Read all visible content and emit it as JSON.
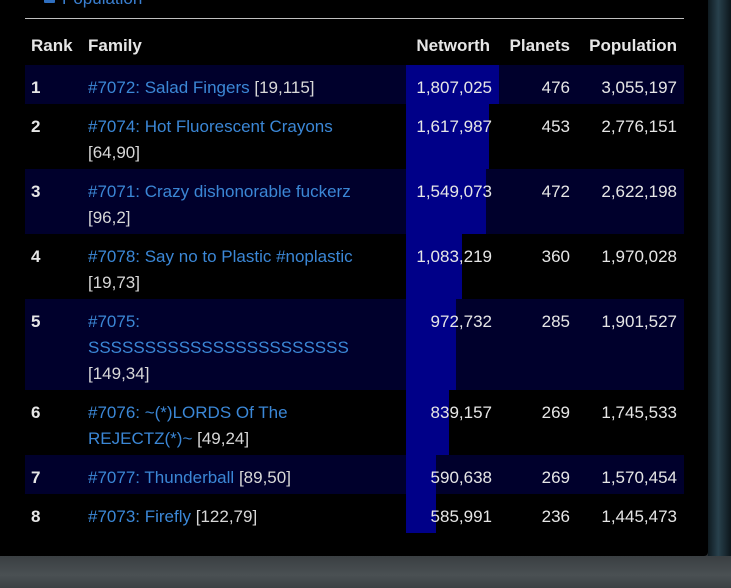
{
  "legend": {
    "label": "Population"
  },
  "table": {
    "headers": {
      "rank": "Rank",
      "family": "Family",
      "networth": "Networth",
      "planets": "Planets",
      "population": "Population"
    },
    "max_networth": 1807025,
    "rows": [
      {
        "rank": "1",
        "family": "#7072: Salad Fingers",
        "coords": "[19,115]",
        "networth": "1,807,025",
        "networth_value": 1807025,
        "planets": "476",
        "population": "3,055,197"
      },
      {
        "rank": "2",
        "family": "#7074: Hot Fluorescent Crayons",
        "coords": "[64,90]",
        "networth": "1,617,987",
        "networth_value": 1617987,
        "planets": "453",
        "population": "2,776,151"
      },
      {
        "rank": "3",
        "family": "#7071: Crazy dishonorable fuckerz",
        "coords": "[96,2]",
        "networth": "1,549,073",
        "networth_value": 1549073,
        "planets": "472",
        "population": "2,622,198"
      },
      {
        "rank": "4",
        "family": "#7078: Say no to Plastic #noplastic",
        "coords": "[19,73]",
        "networth": "1,083,219",
        "networth_value": 1083219,
        "planets": "360",
        "population": "1,970,028"
      },
      {
        "rank": "5",
        "family": "#7075: SSSSSSSSSSSSSSSSSSSSSSS",
        "coords": "[149,34]",
        "networth": "972,732",
        "networth_value": 972732,
        "planets": "285",
        "population": "1,901,527"
      },
      {
        "rank": "6",
        "family": "#7076: ~(*)LORDS Of The REJECTZ(*)~",
        "coords": "[49,24]",
        "networth": "839,157",
        "networth_value": 839157,
        "planets": "269",
        "population": "1,745,533"
      },
      {
        "rank": "7",
        "family": "#7077: Thunderball",
        "coords": "[89,50]",
        "networth": "590,638",
        "networth_value": 590638,
        "planets": "269",
        "population": "1,570,454"
      },
      {
        "rank": "8",
        "family": "#7073: Firefly",
        "coords": "[122,79]",
        "networth": "585,991",
        "networth_value": 585991,
        "planets": "236",
        "population": "1,445,473"
      }
    ]
  }
}
